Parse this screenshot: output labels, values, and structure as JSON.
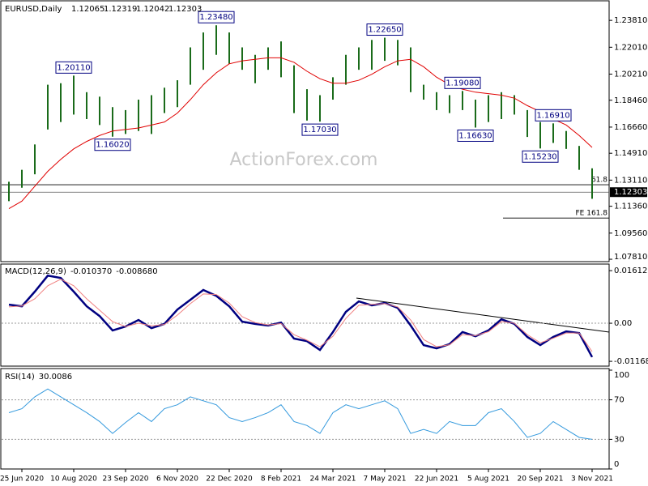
{
  "chart_data": [
    {
      "type": "ohlc",
      "title": "EURUSD,Daily",
      "ohlc": [
        1.12065,
        1.12319,
        1.12042,
        1.12303
      ],
      "watermark": "ActionForex.com",
      "categories": [
        null,
        "25 Jun 2020",
        null,
        null,
        null,
        "10 Aug 2020",
        null,
        null,
        null,
        "23 Sep 2020",
        null,
        null,
        null,
        "6 Nov 2020",
        null,
        null,
        null,
        "22 Dec 2020",
        null,
        null,
        null,
        "8 Feb 2021",
        null,
        null,
        null,
        "24 Mar 2021",
        null,
        null,
        null,
        "7 May 2021",
        null,
        null,
        null,
        "22 Jun 2021",
        null,
        null,
        null,
        "5 Aug 2021",
        null,
        null,
        null,
        "20 Sep 2021",
        null,
        null,
        null,
        "3 Nov 2021"
      ],
      "highs": [
        1.13,
        1.138,
        1.155,
        1.195,
        1.196,
        1.2011,
        1.19,
        1.187,
        1.18,
        1.178,
        1.185,
        1.188,
        1.193,
        1.198,
        1.22,
        1.23,
        1.2348,
        1.23,
        1.22,
        1.215,
        1.22,
        1.224,
        1.208,
        1.192,
        1.188,
        1.2,
        1.215,
        1.22,
        1.225,
        1.2265,
        1.225,
        1.22,
        1.195,
        1.19,
        1.188,
        1.1908,
        1.185,
        1.188,
        1.19,
        1.188,
        1.178,
        1.17,
        1.1691,
        1.164,
        1.154,
        1.139
      ],
      "lows": [
        1.117,
        1.126,
        1.135,
        1.165,
        1.17,
        1.175,
        1.172,
        1.168,
        1.1602,
        1.162,
        1.164,
        1.162,
        1.176,
        1.18,
        1.195,
        1.205,
        1.215,
        1.209,
        1.205,
        1.196,
        1.205,
        1.2,
        1.176,
        1.171,
        1.1703,
        1.185,
        1.195,
        1.205,
        1.205,
        1.211,
        1.208,
        1.19,
        1.185,
        1.178,
        1.176,
        1.178,
        1.1663,
        1.17,
        1.172,
        1.175,
        1.16,
        1.1523,
        1.156,
        1.152,
        1.138,
        1.1186
      ],
      "color": "#1a6b1a",
      "ma": {
        "color": "#e00000",
        "values": [
          1.112,
          1.117,
          1.127,
          1.137,
          1.145,
          1.152,
          1.157,
          1.161,
          1.164,
          1.165,
          1.166,
          1.168,
          1.17,
          1.176,
          1.185,
          1.195,
          1.203,
          1.209,
          1.211,
          1.212,
          1.213,
          1.213,
          1.21,
          1.204,
          1.199,
          1.196,
          1.196,
          1.198,
          1.202,
          1.207,
          1.211,
          1.212,
          1.207,
          1.2,
          1.195,
          1.192,
          1.19,
          1.189,
          1.188,
          1.186,
          1.181,
          1.177,
          1.172,
          1.168,
          1.161,
          1.153
        ]
      },
      "swing_labels": [
        {
          "value": 1.2011,
          "label": "1.20110"
        },
        {
          "value": 1.1602,
          "label": "1.16020"
        },
        {
          "value": 1.2348,
          "label": "1.23480"
        },
        {
          "value": 1.1703,
          "label": "1.17030"
        },
        {
          "value": 1.2265,
          "label": "1.22650"
        },
        {
          "value": 1.1908,
          "label": "1.19080"
        },
        {
          "value": 1.1663,
          "label": "1.16630"
        },
        {
          "value": 1.1691,
          "label": "1.16910"
        },
        {
          "value": 1.1523,
          "label": "1.15230"
        }
      ],
      "levels": [
        {
          "label": "61.8",
          "value": 1.128
        },
        {
          "label": "FE 161.8",
          "value": 1.1057
        }
      ],
      "ylim": [
        1.0765,
        1.2512
      ],
      "yticks": [
        {
          "value": 1.2381,
          "label": "1.23810"
        },
        {
          "value": 1.2201,
          "label": "1.22010"
        },
        {
          "value": 1.2021,
          "label": "1.20210"
        },
        {
          "value": 1.1846,
          "label": "1.18460"
        },
        {
          "value": 1.1666,
          "label": "1.16660"
        },
        {
          "value": 1.1491,
          "label": "1.14910"
        },
        {
          "value": 1.1311,
          "label": "1.13110"
        },
        {
          "value": 1.1136,
          "label": "1.11360"
        },
        {
          "value": 1.0956,
          "label": "1.09560"
        },
        {
          "value": 1.0781,
          "label": "1.07810"
        }
      ],
      "grid": false
    },
    {
      "type": "line",
      "title": "MACD(12,26,9)",
      "readings": [
        {
          "value": -0.01037,
          "label": "-0.010370"
        },
        {
          "value": -0.00868,
          "label": "-0.008680"
        }
      ],
      "series": [
        {
          "color": "#000080",
          "values": [
            0.0057,
            0.0052,
            0.0097,
            0.0146,
            0.0139,
            0.0097,
            0.0052,
            0.0022,
            -0.0022,
            -0.001,
            0.001,
            -0.0015,
            -0.0002,
            0.0042,
            0.0072,
            0.0102,
            0.0084,
            0.0052,
            0.0005,
            -0.0002,
            -0.0007,
            0.0002,
            -0.0047,
            -0.0055,
            -0.0082,
            -0.0027,
            0.0035,
            0.0067,
            0.0055,
            0.0062,
            0.0047,
            -0.0007,
            -0.0067,
            -0.0077,
            -0.0064,
            -0.0027,
            -0.004,
            -0.0022,
            0.0012,
            -0.0002,
            -0.0042,
            -0.0067,
            -0.0042,
            -0.0025,
            -0.003,
            -0.01037
          ]
        },
        {
          "color": "#f08080",
          "values": [
            0.005,
            0.0053,
            0.0075,
            0.0115,
            0.0135,
            0.0115,
            0.0075,
            0.004,
            0.0005,
            -0.001,
            0.0,
            -0.0008,
            -0.0004,
            0.0025,
            0.006,
            0.009,
            0.0088,
            0.0062,
            0.002,
            0.0002,
            -0.0005,
            -0.0001,
            -0.0035,
            -0.0052,
            -0.0072,
            -0.004,
            0.0015,
            0.0055,
            0.0058,
            0.006,
            0.005,
            0.001,
            -0.005,
            -0.0072,
            -0.0066,
            -0.0035,
            -0.0038,
            -0.0026,
            0.0005,
            0.0,
            -0.0035,
            -0.006,
            -0.0046,
            -0.003,
            -0.003,
            -0.00868
          ]
        }
      ],
      "ylim": [
        -0.01315,
        0.0179
      ],
      "yticks": [
        0.016122,
        {
          "value": 0,
          "label": "0.00"
        },
        -0.011681
      ],
      "grid": true
    },
    {
      "type": "line",
      "title": "RSI(14)",
      "readings": [
        30.0086
      ],
      "series": [
        {
          "color": "#3399dd",
          "values": [
            57,
            61,
            73,
            81,
            73,
            65,
            57,
            48,
            36,
            47,
            57,
            48,
            61,
            65,
            73,
            69,
            65,
            52,
            48,
            52,
            57,
            65,
            48,
            44,
            36,
            57,
            65,
            61,
            65,
            69,
            61,
            36,
            40,
            36,
            48,
            44,
            44,
            57,
            61,
            48,
            32,
            36,
            48,
            40,
            32,
            30.0086
          ]
        }
      ],
      "ylim": [
        0,
        100
      ],
      "yticks": [
        100,
        70,
        30,
        0
      ],
      "grid": true
    }
  ]
}
